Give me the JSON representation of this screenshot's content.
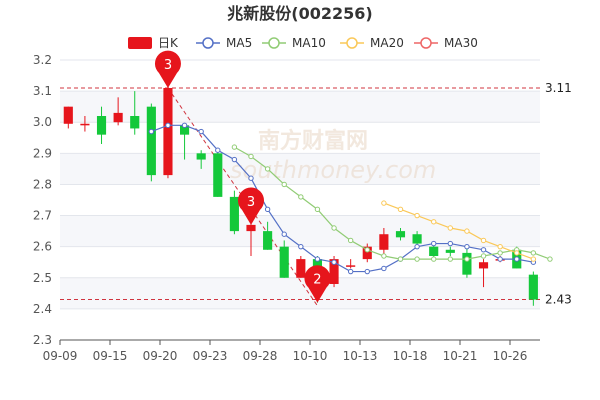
{
  "chart_data": {
    "type": "candlestick",
    "title": "兆新股份(002256)",
    "ylim": [
      2.3,
      3.2
    ],
    "y_ticks": [
      2.3,
      2.4,
      2.5,
      2.6,
      2.7,
      2.8,
      2.9,
      3.0,
      3.1,
      3.2
    ],
    "x_tick_labels": [
      "09-09",
      "09-15",
      "09-20",
      "09-23",
      "09-28",
      "10-10",
      "10-13",
      "10-18",
      "10-21",
      "10-26"
    ],
    "candles": [
      {
        "o": 2.995,
        "c": 3.05,
        "h": 3.05,
        "l": 2.98
      },
      {
        "o": 2.99,
        "c": 2.995,
        "h": 3.02,
        "l": 2.97
      },
      {
        "o": 3.02,
        "c": 2.96,
        "h": 3.05,
        "l": 2.93
      },
      {
        "o": 3.0,
        "c": 3.03,
        "h": 3.08,
        "l": 2.99
      },
      {
        "o": 3.02,
        "c": 2.98,
        "h": 3.1,
        "l": 2.96
      },
      {
        "o": 3.05,
        "c": 2.83,
        "h": 3.06,
        "l": 2.81
      },
      {
        "o": 2.83,
        "c": 3.11,
        "h": 3.18,
        "l": 2.82
      },
      {
        "o": 2.99,
        "c": 2.96,
        "h": 2.99,
        "l": 2.88
      },
      {
        "o": 2.9,
        "c": 2.88,
        "h": 2.91,
        "l": 2.85
      },
      {
        "o": 2.9,
        "c": 2.76,
        "h": 2.91,
        "l": 2.76
      },
      {
        "o": 2.76,
        "c": 2.65,
        "h": 2.78,
        "l": 2.64
      },
      {
        "o": 2.65,
        "c": 2.67,
        "h": 2.71,
        "l": 2.57
      },
      {
        "o": 2.65,
        "c": 2.59,
        "h": 2.68,
        "l": 2.59
      },
      {
        "o": 2.6,
        "c": 2.5,
        "h": 2.62,
        "l": 2.5
      },
      {
        "o": 2.5,
        "c": 2.56,
        "h": 2.57,
        "l": 2.5
      },
      {
        "o": 2.56,
        "c": 2.48,
        "h": 2.57,
        "l": 2.42
      },
      {
        "o": 2.48,
        "c": 2.56,
        "h": 2.57,
        "l": 2.47
      },
      {
        "o": 2.54,
        "c": 2.54,
        "h": 2.56,
        "l": 2.53
      },
      {
        "o": 2.56,
        "c": 2.6,
        "h": 2.61,
        "l": 2.55
      },
      {
        "o": 2.59,
        "c": 2.64,
        "h": 2.66,
        "l": 2.57
      },
      {
        "o": 2.65,
        "c": 2.63,
        "h": 2.66,
        "l": 2.62
      },
      {
        "o": 2.64,
        "c": 2.61,
        "h": 2.65,
        "l": 2.6
      },
      {
        "o": 2.6,
        "c": 2.57,
        "h": 2.61,
        "l": 2.56
      },
      {
        "o": 2.59,
        "c": 2.58,
        "h": 2.6,
        "l": 2.57
      },
      {
        "o": 2.58,
        "c": 2.51,
        "h": 2.6,
        "l": 2.5
      },
      {
        "o": 2.53,
        "c": 2.55,
        "h": 2.56,
        "l": 2.47
      },
      {
        "o": 2.56,
        "c": 2.56,
        "h": 2.57,
        "l": 2.55
      },
      {
        "o": 2.59,
        "c": 2.53,
        "h": 2.6,
        "l": 2.53
      },
      {
        "o": 2.51,
        "c": 2.43,
        "h": 2.52,
        "l": 2.41
      }
    ],
    "ma_series": [
      {
        "name": "MA5",
        "color": "#5470c6",
        "start": 5,
        "values": [
          2.97,
          2.99,
          2.99,
          2.97,
          2.91,
          2.88,
          2.82,
          2.72,
          2.64,
          2.6,
          2.56,
          2.55,
          2.52,
          2.52,
          2.53,
          2.56,
          2.6,
          2.61,
          2.61,
          2.6,
          2.59,
          2.56,
          2.56,
          2.55
        ]
      },
      {
        "name": "MA10",
        "color": "#91cc75",
        "start": 10,
        "values": [
          2.92,
          2.89,
          2.85,
          2.8,
          2.76,
          2.72,
          2.66,
          2.62,
          2.59,
          2.57,
          2.56,
          2.56,
          2.56,
          2.56,
          2.56,
          2.57,
          2.58,
          2.59,
          2.58,
          2.56
        ]
      },
      {
        "name": "MA20",
        "color": "#fac858",
        "start": 19,
        "values": [
          2.74,
          2.72,
          2.7,
          2.68,
          2.66,
          2.65,
          2.62,
          2.6,
          2.58,
          2.56
        ]
      },
      {
        "name": "MA30",
        "color": "#ee6666",
        "start": 29,
        "values": []
      }
    ],
    "legend": [
      "日K",
      "MA5",
      "MA10",
      "MA20",
      "MA30"
    ],
    "ref_lines": [
      {
        "value": 3.11,
        "label": "3.11"
      },
      {
        "value": 2.43,
        "label": "2.43"
      }
    ],
    "markers": [
      {
        "index": 6,
        "value": 3.11,
        "label": "3"
      },
      {
        "index": 11,
        "value": 2.67,
        "label": "3"
      },
      {
        "index": 15,
        "value": 2.42,
        "label": "2"
      }
    ],
    "trend_line": {
      "from": {
        "index": 6,
        "value": 3.11
      },
      "to": {
        "index": 15,
        "value": 2.41
      }
    },
    "up_color": "#e6151c",
    "down_color": "#14c83a",
    "grid": true
  },
  "watermark": {
    "text_cn": "南方财富网",
    "text_en": "southmoney.com"
  }
}
